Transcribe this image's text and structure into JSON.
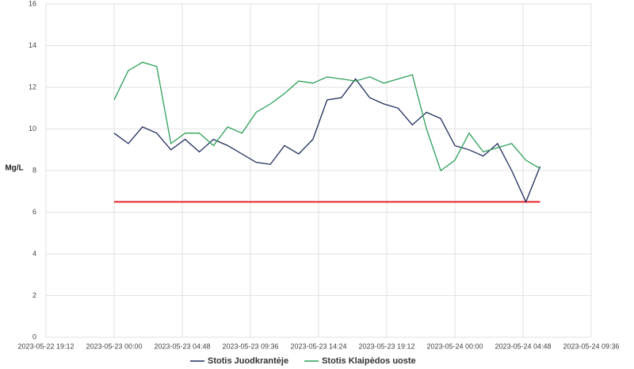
{
  "chart_data": {
    "type": "line",
    "y_label": "Mg/L",
    "x": [
      "2023-05-23 00:00",
      "2023-05-23 01:00",
      "2023-05-23 02:00",
      "2023-05-23 03:00",
      "2023-05-23 04:00",
      "2023-05-23 05:00",
      "2023-05-23 06:00",
      "2023-05-23 07:00",
      "2023-05-23 08:00",
      "2023-05-23 09:00",
      "2023-05-23 10:00",
      "2023-05-23 11:00",
      "2023-05-23 12:00",
      "2023-05-23 13:00",
      "2023-05-23 14:00",
      "2023-05-23 15:00",
      "2023-05-23 16:00",
      "2023-05-23 17:00",
      "2023-05-23 18:00",
      "2023-05-23 19:00",
      "2023-05-23 20:00",
      "2023-05-23 21:00",
      "2023-05-23 22:00",
      "2023-05-23 23:00",
      "2023-05-24 00:00",
      "2023-05-24 01:00",
      "2023-05-24 02:00",
      "2023-05-24 03:00",
      "2023-05-24 04:00",
      "2023-05-24 05:00",
      "2023-05-24 06:00"
    ],
    "series": [
      {
        "name": "Stotis Juodkrantėje",
        "color": "#1f2d5c",
        "values": [
          9.8,
          9.3,
          10.1,
          9.8,
          9.0,
          9.5,
          8.9,
          9.5,
          9.2,
          8.8,
          8.4,
          8.3,
          9.2,
          8.8,
          9.5,
          11.4,
          11.5,
          12.4,
          11.5,
          11.2,
          11.0,
          10.2,
          10.8,
          10.5,
          9.2,
          9.0,
          8.7,
          9.3,
          8.0,
          6.5,
          8.2
        ]
      },
      {
        "name": "Stotis Klaipėdos uoste",
        "color": "#2ea05a",
        "values": [
          11.4,
          12.8,
          13.2,
          13.0,
          9.3,
          9.8,
          9.8,
          9.2,
          10.1,
          9.8,
          10.8,
          11.2,
          11.7,
          12.3,
          12.2,
          12.5,
          12.4,
          12.3,
          12.5,
          12.2,
          12.4,
          12.6,
          10.0,
          8.0,
          8.5,
          9.8,
          8.9,
          9.1,
          9.3,
          8.5,
          8.1
        ]
      }
    ],
    "threshold_line": {
      "y": 6.5,
      "color": "#e8242a",
      "x_start": "2023-05-23 00:00",
      "x_end": "2023-05-24 06:00"
    },
    "xlim": [
      "2023-05-22 19:12",
      "2023-05-24 09:36"
    ],
    "xticks": [
      "2023-05-22 19:12",
      "2023-05-23 00:00",
      "2023-05-23 04:48",
      "2023-05-23 09:36",
      "2023-05-23 14:24",
      "2023-05-23 19:12",
      "2023-05-24 00:00",
      "2023-05-24 04:48",
      "2023-05-24 09:36"
    ],
    "ylim": [
      0,
      16
    ],
    "yticks": [
      0,
      2,
      4,
      6,
      8,
      10,
      12,
      14,
      16
    ],
    "grid": true
  }
}
